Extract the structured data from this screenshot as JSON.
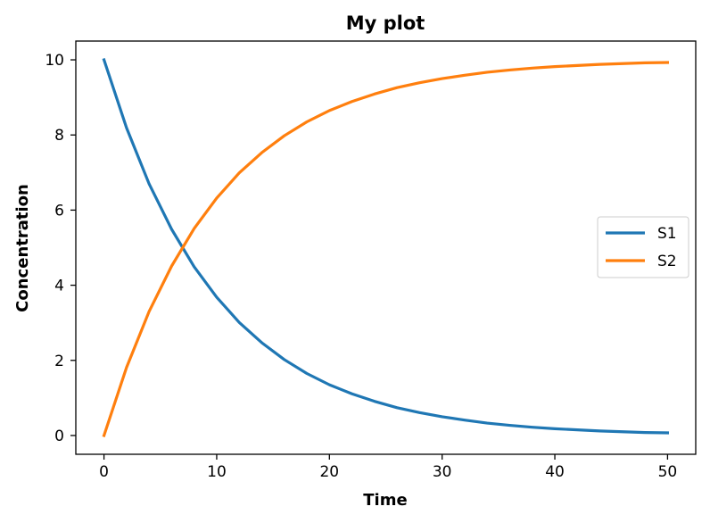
{
  "chart_data": {
    "type": "line",
    "title": "My plot",
    "xlabel": "Time",
    "ylabel": "Concentration",
    "xlim": [
      -2.5,
      52.5
    ],
    "ylim": [
      -0.5,
      10.5
    ],
    "xticks": [
      0,
      10,
      20,
      30,
      40,
      50
    ],
    "yticks": [
      0,
      2,
      4,
      6,
      8,
      10
    ],
    "x_tick_labels": [
      "0",
      "10",
      "20",
      "30",
      "40",
      "50"
    ],
    "y_tick_labels": [
      "0",
      "2",
      "4",
      "6",
      "8",
      "10"
    ],
    "grid": false,
    "legend_position": "center-right",
    "x": [
      0,
      2,
      4,
      6,
      8,
      10,
      12,
      14,
      16,
      18,
      20,
      22,
      24,
      26,
      28,
      30,
      32,
      34,
      36,
      38,
      40,
      42,
      44,
      46,
      48,
      50
    ],
    "series": [
      {
        "name": "S1",
        "color": "#1f77b4",
        "values": [
          10.0,
          8.19,
          6.7,
          5.49,
          4.49,
          3.68,
          3.01,
          2.47,
          2.02,
          1.65,
          1.35,
          1.11,
          0.91,
          0.74,
          0.61,
          0.5,
          0.41,
          0.33,
          0.27,
          0.22,
          0.18,
          0.15,
          0.12,
          0.1,
          0.08,
          0.07
        ]
      },
      {
        "name": "S2",
        "color": "#ff7f0e",
        "values": [
          0.0,
          1.81,
          3.3,
          4.51,
          5.51,
          6.32,
          6.99,
          7.53,
          7.98,
          8.35,
          8.65,
          8.89,
          9.09,
          9.26,
          9.39,
          9.5,
          9.59,
          9.67,
          9.73,
          9.78,
          9.82,
          9.85,
          9.88,
          9.9,
          9.92,
          9.93
        ]
      }
    ]
  }
}
